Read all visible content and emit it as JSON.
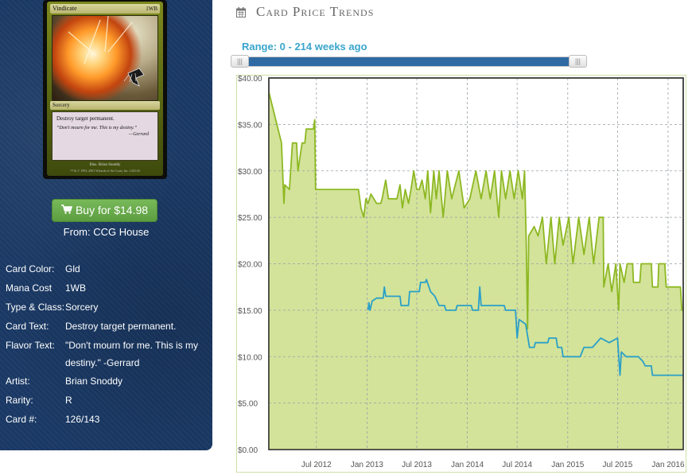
{
  "card": {
    "name": "Vindicate",
    "mana_symbols": "1WB",
    "type_line": "Sorcery",
    "rules_text": "Destroy target permanent.",
    "flavor_text": "“Don't mourn for me. This is my destiny.”",
    "flavor_attribution": "—Gerrard",
    "artist_line": "Illus. Brian Snoddy",
    "copyright_line": "™ & © 1993–2001 Wizards of the Coast, Inc. 126/143"
  },
  "buy_button": {
    "label": "Buy for $14.98",
    "icon": "shopping-cart-icon"
  },
  "from_text": "From: CCG House",
  "details": [
    {
      "label": "Card Color:",
      "value": "Gld"
    },
    {
      "label": "Mana Cost",
      "value": "1WB"
    },
    {
      "label": "Type & Class:",
      "value": "Sorcery"
    },
    {
      "label": "Card Text:",
      "value": "Destroy target permanent."
    },
    {
      "label": "Flavor Text:",
      "value": "\"Don't mourn for me. This is my destiny.\" -Gerrard"
    },
    {
      "label": "Artist:",
      "value": "Brian Snoddy"
    },
    {
      "label": "Rarity:",
      "value": "R"
    },
    {
      "label": "Card #:",
      "value": "126/143"
    }
  ],
  "header": {
    "icon": "calendar-icon",
    "title": "Card Price Trends"
  },
  "range": {
    "label": "Range: 0 - 214 weeks ago",
    "min_weeks": 0,
    "max_weeks": 214
  },
  "colors": {
    "panel_bg": "#1b3a66",
    "accent": "#3aa5cc",
    "slider_range": "#2f6aa3",
    "buy_button": "#5fa444",
    "series_green": "#8db822",
    "series_green_fill": "#d3e39a",
    "series_blue": "#2aa0c8"
  },
  "chart_data": {
    "type": "line",
    "ylim": [
      0,
      40
    ],
    "yticks": [
      "$0.00",
      "$5.00",
      "$10.00",
      "$15.00",
      "$20.00",
      "$25.00",
      "$30.00",
      "$35.00",
      "$40.00"
    ],
    "xlim": [
      "2012-01-10",
      "2016-02-25"
    ],
    "xticks": [
      "Jul 2012",
      "Jan 2013",
      "Jul 2013",
      "Jan 2014",
      "Jul 2014",
      "Jan 2015",
      "Jul 2015",
      "Jan 2016"
    ],
    "grid": true,
    "series": [
      {
        "color": "#8db822",
        "fill": true,
        "points": [
          [
            "2012-01-10",
            38.5
          ],
          [
            "2012-02-25",
            33.0
          ],
          [
            "2012-03-05",
            26.5
          ],
          [
            "2012-03-08",
            28.5
          ],
          [
            "2012-03-25",
            28.0
          ],
          [
            "2012-04-05",
            33.0
          ],
          [
            "2012-04-20",
            33.0
          ],
          [
            "2012-04-25",
            30.0
          ],
          [
            "2012-05-10",
            33.0
          ],
          [
            "2012-05-20",
            33.0
          ],
          [
            "2012-05-25",
            34.5
          ],
          [
            "2012-06-20",
            34.5
          ],
          [
            "2012-06-25",
            35.5
          ],
          [
            "2012-06-28",
            28.0
          ],
          [
            "2012-12-01",
            28.0
          ],
          [
            "2012-12-10",
            26.0
          ],
          [
            "2012-12-20",
            25.0
          ],
          [
            "2012-12-28",
            27.0
          ],
          [
            "2013-01-05",
            26.5
          ],
          [
            "2013-01-15",
            27.5
          ],
          [
            "2013-02-05",
            26.5
          ],
          [
            "2013-02-20",
            26.5
          ],
          [
            "2013-02-25",
            27.0
          ],
          [
            "2013-03-10",
            29.0
          ],
          [
            "2013-03-20",
            27.0
          ],
          [
            "2013-04-20",
            27.0
          ],
          [
            "2013-05-01",
            28.5
          ],
          [
            "2013-05-10",
            26.0
          ],
          [
            "2013-05-20",
            28.0
          ],
          [
            "2013-06-01",
            26.5
          ],
          [
            "2013-06-10",
            28.0
          ],
          [
            "2013-06-20",
            30.0
          ],
          [
            "2013-07-01",
            28.0
          ],
          [
            "2013-07-10",
            28.0
          ],
          [
            "2013-07-20",
            29.0
          ],
          [
            "2013-08-01",
            27.0
          ],
          [
            "2013-08-10",
            30.0
          ],
          [
            "2013-08-20",
            25.5
          ],
          [
            "2013-09-01",
            30.0
          ],
          [
            "2013-09-10",
            27.0
          ],
          [
            "2013-09-20",
            30.0
          ],
          [
            "2013-10-05",
            25.0
          ],
          [
            "2013-10-20",
            30.0
          ],
          [
            "2013-11-05",
            27.0
          ],
          [
            "2013-12-01",
            30.0
          ],
          [
            "2013-12-20",
            26.0
          ],
          [
            "2014-01-10",
            27.0
          ],
          [
            "2014-02-01",
            30.0
          ],
          [
            "2014-02-20",
            27.0
          ],
          [
            "2014-03-10",
            30.0
          ],
          [
            "2014-03-25",
            27.0
          ],
          [
            "2014-04-10",
            30.0
          ],
          [
            "2014-04-25",
            25.0
          ],
          [
            "2014-05-05",
            30.0
          ],
          [
            "2014-05-20",
            27.0
          ],
          [
            "2014-06-05",
            30.0
          ],
          [
            "2014-06-20",
            27.0
          ],
          [
            "2014-07-05",
            30.0
          ],
          [
            "2014-07-20",
            27.0
          ],
          [
            "2014-07-28",
            30.0
          ],
          [
            "2014-08-03",
            22.5
          ],
          [
            "2014-08-08",
            13.0
          ],
          [
            "2014-08-12",
            23.0
          ],
          [
            "2014-09-01",
            24.0
          ],
          [
            "2014-09-15",
            23.0
          ],
          [
            "2014-10-01",
            25.0
          ],
          [
            "2014-10-15",
            20.0
          ],
          [
            "2014-11-01",
            25.0
          ],
          [
            "2014-11-15",
            20.0
          ],
          [
            "2014-12-01",
            25.0
          ],
          [
            "2014-12-15",
            22.0
          ],
          [
            "2015-01-05",
            25.0
          ],
          [
            "2015-01-20",
            20.0
          ],
          [
            "2015-02-10",
            25.0
          ],
          [
            "2015-03-01",
            21.0
          ],
          [
            "2015-03-20",
            25.0
          ],
          [
            "2015-04-05",
            20.0
          ],
          [
            "2015-04-25",
            25.0
          ],
          [
            "2015-05-10",
            25.0
          ],
          [
            "2015-05-12",
            17.5
          ],
          [
            "2015-05-28",
            20.0
          ],
          [
            "2015-06-10",
            17.0
          ],
          [
            "2015-06-25",
            20.0
          ],
          [
            "2015-07-05",
            15.0
          ],
          [
            "2015-07-10",
            20.0
          ],
          [
            "2015-07-25",
            18.0
          ],
          [
            "2015-08-05",
            20.0
          ],
          [
            "2015-08-25",
            20.0
          ],
          [
            "2015-08-28",
            18.0
          ],
          [
            "2015-09-20",
            18.0
          ],
          [
            "2015-09-25",
            20.0
          ],
          [
            "2015-11-01",
            20.0
          ],
          [
            "2015-11-05",
            17.5
          ],
          [
            "2015-11-25",
            17.5
          ],
          [
            "2015-11-28",
            20.0
          ],
          [
            "2015-12-20",
            20.0
          ],
          [
            "2015-12-25",
            17.5
          ],
          [
            "2016-02-15",
            17.5
          ],
          [
            "2016-02-20",
            15.0
          ],
          [
            "2016-02-25",
            15.0
          ]
        ]
      },
      {
        "color": "#2aa0c8",
        "fill": false,
        "points": [
          [
            "2013-01-05",
            15.0
          ],
          [
            "2013-01-08",
            15.8
          ],
          [
            "2013-01-12",
            15.0
          ],
          [
            "2013-01-20",
            16.0
          ],
          [
            "2013-02-05",
            16.3
          ],
          [
            "2013-03-01",
            16.3
          ],
          [
            "2013-03-05",
            17.5
          ],
          [
            "2013-03-10",
            16.5
          ],
          [
            "2013-05-01",
            16.5
          ],
          [
            "2013-05-05",
            15.5
          ],
          [
            "2013-06-01",
            15.5
          ],
          [
            "2013-06-05",
            17.0
          ],
          [
            "2013-07-10",
            17.0
          ],
          [
            "2013-07-15",
            18.0
          ],
          [
            "2013-08-01",
            18.0
          ],
          [
            "2013-08-05",
            18.3
          ],
          [
            "2013-08-20",
            17.0
          ],
          [
            "2013-09-05",
            16.5
          ],
          [
            "2013-09-20",
            15.5
          ],
          [
            "2013-10-10",
            15.5
          ],
          [
            "2013-10-15",
            15.0
          ],
          [
            "2013-11-20",
            15.0
          ],
          [
            "2013-11-25",
            15.5
          ],
          [
            "2014-01-15",
            15.5
          ],
          [
            "2014-01-20",
            15.0
          ],
          [
            "2014-02-10",
            15.0
          ],
          [
            "2014-02-15",
            17.5
          ],
          [
            "2014-02-20",
            15.5
          ],
          [
            "2014-05-15",
            15.5
          ],
          [
            "2014-05-20",
            15.0
          ],
          [
            "2014-06-25",
            15.0
          ],
          [
            "2014-07-01",
            12.0
          ],
          [
            "2014-07-08",
            14.0
          ],
          [
            "2014-08-01",
            13.5
          ],
          [
            "2014-08-15",
            11.0
          ],
          [
            "2014-09-01",
            11.0
          ],
          [
            "2014-09-05",
            11.5
          ],
          [
            "2014-10-20",
            11.5
          ],
          [
            "2014-10-25",
            12.0
          ],
          [
            "2014-11-20",
            12.0
          ],
          [
            "2014-11-25",
            11.0
          ],
          [
            "2014-12-10",
            11.0
          ],
          [
            "2014-12-15",
            10.0
          ],
          [
            "2015-02-15",
            10.0
          ],
          [
            "2015-03-01",
            11.0
          ],
          [
            "2015-04-01",
            11.0
          ],
          [
            "2015-05-01",
            12.0
          ],
          [
            "2015-06-01",
            11.5
          ],
          [
            "2015-07-01",
            12.0
          ],
          [
            "2015-07-10",
            8.0
          ],
          [
            "2015-07-15",
            10.5
          ],
          [
            "2015-08-01",
            10.0
          ],
          [
            "2015-09-15",
            10.0
          ],
          [
            "2015-10-01",
            9.5
          ],
          [
            "2015-10-10",
            9.0
          ],
          [
            "2015-11-01",
            9.0
          ],
          [
            "2015-11-05",
            8.0
          ],
          [
            "2016-02-25",
            8.0
          ]
        ]
      }
    ]
  }
}
